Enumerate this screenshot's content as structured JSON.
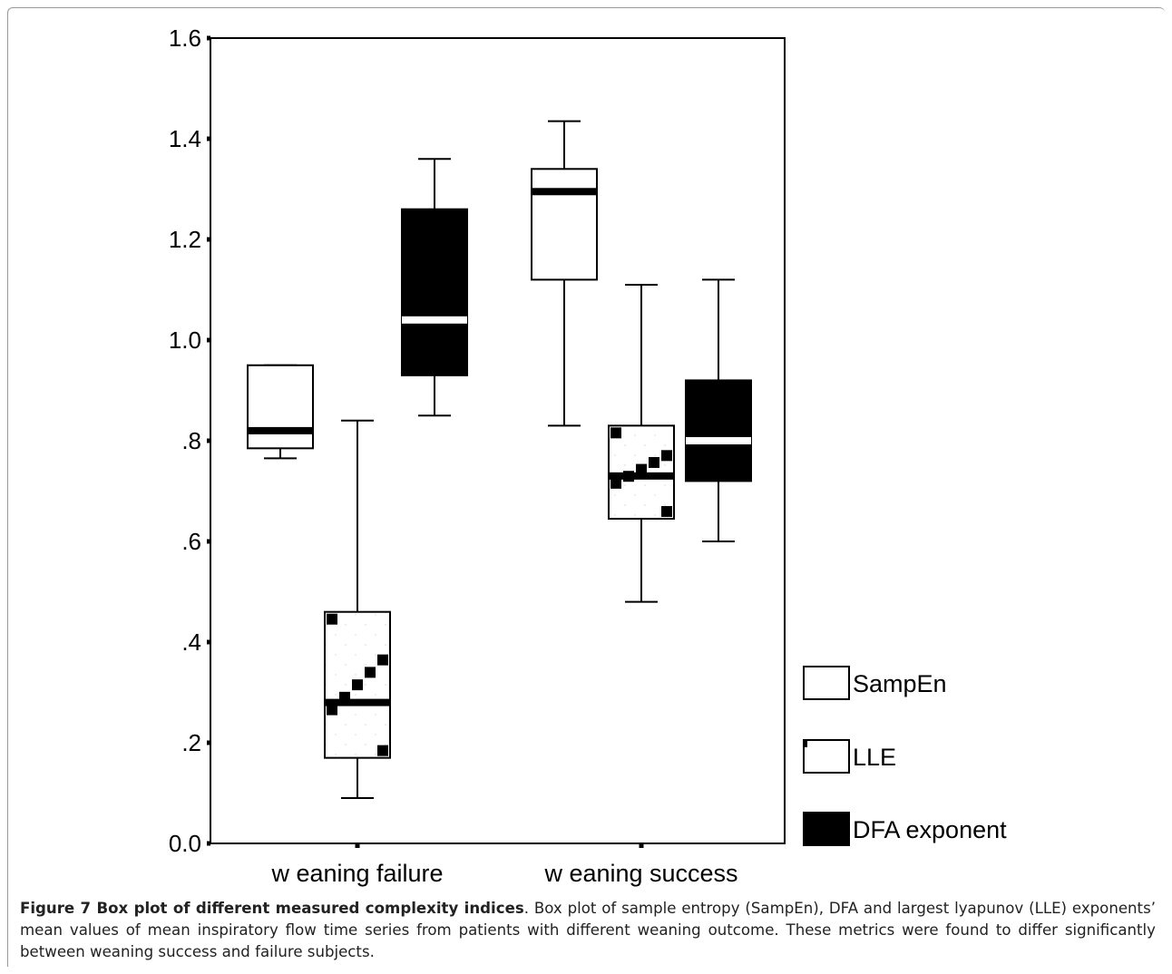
{
  "chart_data": {
    "type": "box",
    "categories": [
      "w eaning failure",
      "w eaning success"
    ],
    "ylim": [
      0.0,
      1.6
    ],
    "yticks": [
      0.0,
      0.2,
      0.4,
      0.6,
      0.8,
      1.0,
      1.2,
      1.4,
      1.6
    ],
    "ytick_labels": [
      "0.0",
      ".2",
      ".4",
      ".6",
      ".8",
      "1.0",
      "1.2",
      "1.4",
      "1.6"
    ],
    "legend_position": "right",
    "grid": false,
    "series": [
      {
        "name": "SampEn",
        "fill": "#ffffff",
        "pattern": "none",
        "boxes": [
          {
            "min": 0.765,
            "q1": 0.785,
            "median": 0.82,
            "q3": 0.95,
            "max": 0.95
          },
          {
            "min": 0.83,
            "q1": 1.12,
            "median": 1.295,
            "q3": 1.34,
            "max": 1.435
          }
        ]
      },
      {
        "name": "LLE",
        "fill": "#ffffff",
        "pattern": "dots",
        "boxes": [
          {
            "min": 0.09,
            "q1": 0.17,
            "median": 0.28,
            "q3": 0.46,
            "max": 0.84
          },
          {
            "min": 0.48,
            "q1": 0.645,
            "median": 0.73,
            "q3": 0.83,
            "max": 1.11
          }
        ]
      },
      {
        "name": "DFA exponent",
        "fill": "#000000",
        "pattern": "none",
        "boxes": [
          {
            "min": 0.85,
            "q1": 0.93,
            "median": 1.04,
            "q3": 1.26,
            "max": 1.36
          },
          {
            "min": 0.6,
            "q1": 0.72,
            "median": 0.8,
            "q3": 0.92,
            "max": 1.12
          }
        ]
      }
    ]
  },
  "caption": {
    "label": "Figure 7 Box plot of different measured complexity indices",
    "text": ". Box plot of sample entropy (SampEn), DFA and largest lyapunov (LLE) exponents’ mean values of mean inspiratory flow time series from patients with different weaning outcome. These metrics were found to differ significantly between weaning success and failure subjects."
  }
}
